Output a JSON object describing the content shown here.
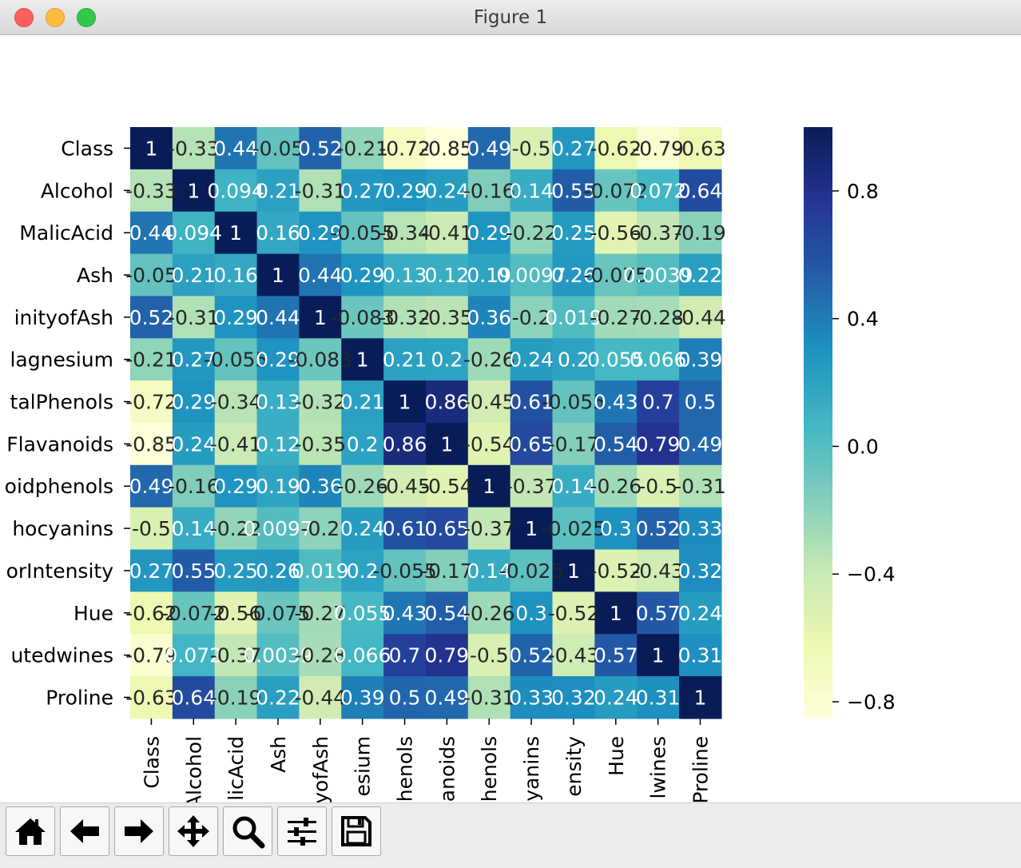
{
  "window": {
    "title": "Figure 1"
  },
  "toolbar": {
    "buttons": [
      {
        "name": "home-button",
        "icon": "home-icon"
      },
      {
        "name": "back-button",
        "icon": "arrow-left-icon"
      },
      {
        "name": "forward-button",
        "icon": "arrow-right-icon"
      },
      {
        "name": "pan-button",
        "icon": "move-icon"
      },
      {
        "name": "zoom-button",
        "icon": "magnifier-icon"
      },
      {
        "name": "configure-subplots-button",
        "icon": "sliders-icon"
      },
      {
        "name": "save-button",
        "icon": "floppy-icon"
      }
    ]
  },
  "chart_data": {
    "type": "heatmap",
    "colormap": "YlGnBu",
    "row_labels": [
      "Class",
      "Alcohol",
      "MalicAcid",
      "Ash",
      "inityofAsh",
      "lagnesium",
      "talPhenols",
      "Flavanoids",
      "oidphenols",
      "hocyanins",
      "orIntensity",
      "Hue",
      "utedwines",
      "Proline"
    ],
    "col_labels": [
      "Class",
      "Alcohol",
      "licAcid",
      "Ash",
      "yofAsh",
      "esium",
      "henols",
      "anoids",
      "henols",
      "yanins",
      "ensity",
      "Hue",
      "lwines",
      "Proline"
    ],
    "values": [
      [
        1,
        -0.33,
        0.44,
        -0.05,
        0.52,
        -0.21,
        -0.72,
        -0.85,
        0.49,
        -0.5,
        0.27,
        -0.62,
        -0.79,
        -0.63
      ],
      [
        -0.33,
        1,
        0.094,
        0.21,
        -0.31,
        0.27,
        0.29,
        0.24,
        -0.16,
        0.14,
        0.55,
        -0.072,
        0.072,
        0.64
      ],
      [
        0.44,
        0.094,
        1,
        0.16,
        0.29,
        -0.055,
        -0.34,
        -0.41,
        0.29,
        -0.22,
        0.25,
        -0.56,
        -0.37,
        -0.19
      ],
      [
        -0.05,
        0.21,
        0.16,
        1,
        0.44,
        0.29,
        0.13,
        0.12,
        0.19,
        0.0097,
        0.26,
        -0.075,
        0.0039,
        0.22
      ],
      [
        0.52,
        -0.31,
        0.29,
        0.44,
        1,
        -0.083,
        -0.32,
        -0.35,
        0.36,
        -0.2,
        0.019,
        -0.27,
        -0.28,
        -0.44
      ],
      [
        -0.21,
        0.27,
        -0.055,
        0.29,
        -0.083,
        1,
        0.21,
        0.2,
        -0.26,
        0.24,
        0.2,
        0.055,
        0.066,
        0.39
      ],
      [
        -0.72,
        0.29,
        -0.34,
        0.13,
        -0.32,
        0.21,
        1,
        0.86,
        -0.45,
        0.61,
        -0.055,
        0.43,
        0.7,
        0.5
      ],
      [
        -0.85,
        0.24,
        -0.41,
        0.12,
        -0.35,
        0.2,
        0.86,
        1,
        -0.54,
        0.65,
        -0.17,
        0.54,
        0.79,
        0.49
      ],
      [
        0.49,
        -0.16,
        0.29,
        0.19,
        0.36,
        -0.26,
        -0.45,
        -0.54,
        1,
        -0.37,
        0.14,
        -0.26,
        -0.5,
        -0.31
      ],
      [
        -0.5,
        0.14,
        -0.22,
        0.0097,
        -0.2,
        0.24,
        0.61,
        0.65,
        -0.37,
        1,
        -0.025,
        0.3,
        0.52,
        0.33
      ],
      [
        0.27,
        0.55,
        0.25,
        0.26,
        0.019,
        0.2,
        -0.055,
        -0.17,
        0.14,
        -0.025,
        1,
        -0.52,
        -0.43,
        0.32
      ],
      [
        -0.62,
        -0.072,
        -0.56,
        -0.075,
        -0.27,
        0.055,
        0.43,
        0.54,
        -0.26,
        0.3,
        -0.52,
        1,
        0.57,
        0.24
      ],
      [
        -0.79,
        0.072,
        -0.37,
        0.0039,
        -0.28,
        0.066,
        0.7,
        0.79,
        -0.5,
        0.52,
        -0.43,
        0.57,
        1,
        0.31
      ],
      [
        -0.63,
        0.64,
        -0.19,
        0.22,
        -0.44,
        0.39,
        0.5,
        0.49,
        -0.31,
        0.33,
        0.32,
        0.24,
        0.31,
        1
      ]
    ],
    "vmin": -0.85,
    "vmax": 1,
    "colorbar_ticks": [
      -0.8,
      -0.4,
      0.0,
      0.4,
      0.8
    ],
    "colorbar_tick_labels": [
      "−0.8",
      "−0.4",
      "0.0",
      "0.4",
      "0.8"
    ]
  }
}
